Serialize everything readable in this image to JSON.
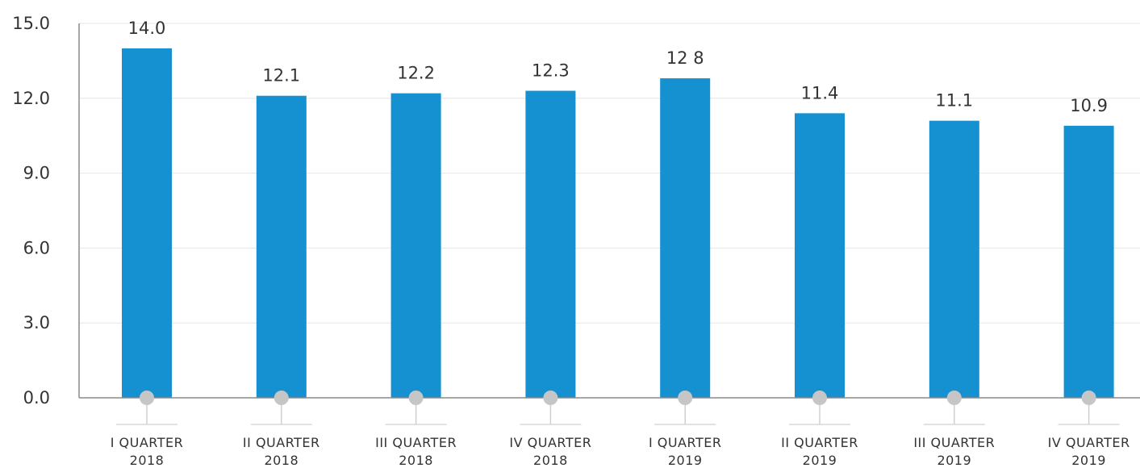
{
  "chart_data": {
    "type": "bar",
    "categories": [
      [
        "I QUARTER",
        "2018"
      ],
      [
        "II QUARTER",
        "2018"
      ],
      [
        "III QUARTER",
        "2018"
      ],
      [
        "IV QUARTER",
        "2018"
      ],
      [
        "I QUARTER",
        "2019"
      ],
      [
        "II QUARTER",
        "2019"
      ],
      [
        "III QUARTER",
        "2019"
      ],
      [
        "IV QUARTER",
        "2019"
      ]
    ],
    "values": [
      14.0,
      12.1,
      12.2,
      12.3,
      12.8,
      11.4,
      11.1,
      10.9
    ],
    "data_labels": [
      "14.0",
      "12.1",
      "12.2",
      "12.3",
      "12 8",
      "11.4",
      "11.1",
      "10.9"
    ],
    "y_ticks": [
      "0.0",
      "3.0",
      "6.0",
      "9.0",
      "12.0",
      "15.0"
    ],
    "ylim": [
      0,
      15
    ],
    "grid": true,
    "legend": "none",
    "bar_color": "#1591d1",
    "marker_color": "#c6c6c6"
  }
}
